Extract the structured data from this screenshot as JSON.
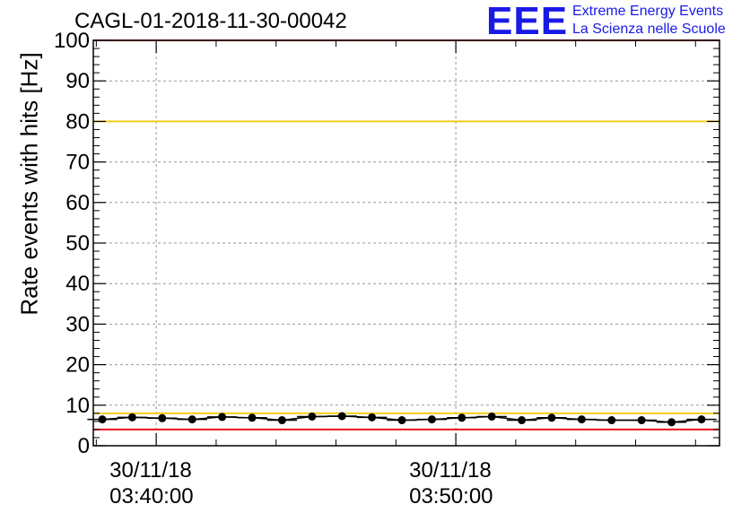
{
  "chart_data": {
    "type": "scatter",
    "title": "CAGL-01-2018-11-30-00042",
    "ylabel": "Rate events with hits [Hz]",
    "xlabel": "",
    "xlim_minutes": [
      37.9,
      58.8
    ],
    "ylim": [
      0,
      100
    ],
    "yticks": [
      "0",
      "10",
      "20",
      "30",
      "40",
      "50",
      "60",
      "70",
      "80",
      "90",
      "100"
    ],
    "xticks": [
      {
        "minute": 40,
        "date": "30/11/18",
        "time": "03:40:00"
      },
      {
        "minute": 50,
        "date": "30/11/18",
        "time": "03:50:00"
      }
    ],
    "grid": true,
    "reference_lines": [
      {
        "y": 100,
        "color": "#e8141c"
      },
      {
        "y": 80,
        "color": "#f4cc1c"
      },
      {
        "y": 8,
        "color": "#f4cc1c"
      },
      {
        "y": 4,
        "color": "#e8141c"
      }
    ],
    "series": [
      {
        "color": "#000000",
        "x_minutes": [
          38.2,
          39.2,
          40.2,
          41.2,
          42.2,
          43.2,
          44.2,
          45.2,
          46.2,
          47.2,
          48.2,
          49.2,
          50.2,
          51.2,
          52.2,
          53.2,
          54.2,
          55.2,
          56.2,
          57.2,
          58.2
        ],
        "values": [
          6.5,
          7.0,
          6.8,
          6.5,
          7.1,
          6.9,
          6.3,
          7.2,
          7.3,
          7.0,
          6.3,
          6.5,
          6.9,
          7.2,
          6.3,
          6.9,
          6.5,
          6.3,
          6.3,
          5.8,
          6.5
        ]
      }
    ]
  },
  "logo": {
    "mark": "EEE",
    "line1": "Extreme Energy Events",
    "line2": "La Scienza nelle Scuole"
  }
}
